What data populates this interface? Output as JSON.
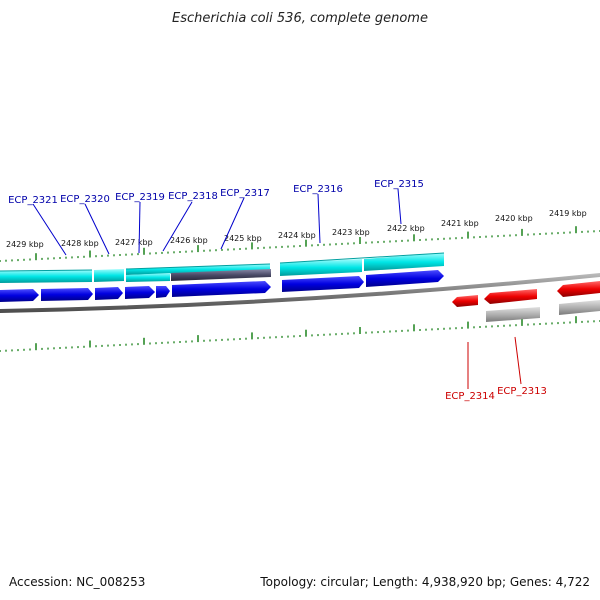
{
  "title": "Escherichia coli 536, complete genome",
  "footer": {
    "accession": "Accession: NC_008253",
    "summary": "Topology: circular; Length: 4,938,920 bp; Genes: 4,722"
  },
  "colors": {
    "forward_gene": "#0000dd",
    "reverse_gene": "#ee0000",
    "cds_cyan": "#00dede",
    "ticks": "#2a8a2a",
    "backbone": "#777777",
    "forward_label": "#0000aa",
    "reverse_label": "#cc0000"
  },
  "kbp_labels": [
    "2429 kbp",
    "2428 kbp",
    "2427 kbp",
    "2426 kbp",
    "2425 kbp",
    "2424 kbp",
    "2423 kbp",
    "2422 kbp",
    "2421 kbp",
    "2420 kbp",
    "2419 kbp"
  ],
  "forward_genes": [
    "ECP_2321",
    "ECP_2320",
    "ECP_2319",
    "ECP_2318",
    "ECP_2317",
    "ECP_2316",
    "ECP_2315"
  ],
  "reverse_genes": [
    "ECP_2314",
    "ECP_2313"
  ]
}
